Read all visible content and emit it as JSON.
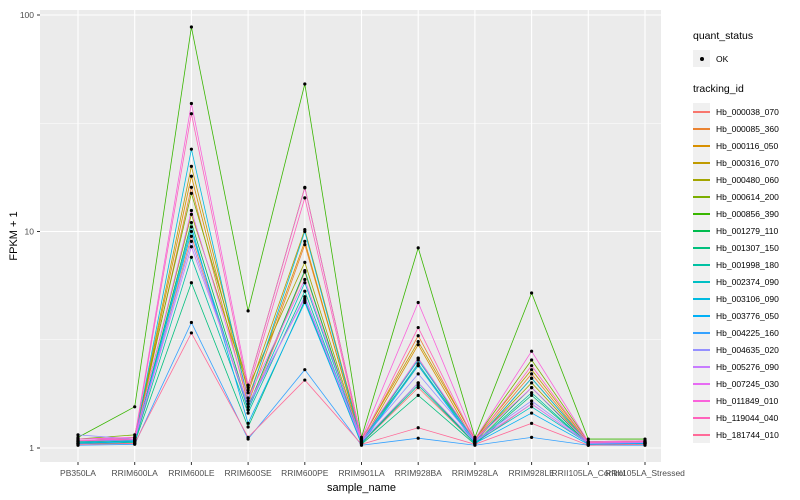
{
  "legend": {
    "quant_status_title": "quant_status",
    "quant_status_items": [
      {
        "label": "OK",
        "symbol": "point"
      }
    ],
    "tracking_id_title": "tracking_id"
  },
  "chart_data": {
    "type": "line",
    "title": "",
    "xlabel": "sample_name",
    "ylabel": "FPKM + 1",
    "y_scale": "log10",
    "ylim": [
      0.86,
      115
    ],
    "y_ticks": [
      1,
      10,
      100
    ],
    "y_minor_ticks": [
      3.162,
      31.62
    ],
    "grid": "on",
    "legend_position": "right",
    "panel_bg": "#EBEBEB",
    "grid_color": "#FFFFFF",
    "point_color": "#000000",
    "axis_text_color": "#4D4D4D",
    "categories": [
      "PB350LA",
      "RRIM600LA",
      "RRIM600LE",
      "RRIM600SE",
      "RRIM600PE",
      "RRIM901LA",
      "RRIM928BA",
      "RRIM928LA",
      "RRIM928LE",
      "RRII105LA_Control",
      "RRII105LA_Stressed"
    ],
    "series": [
      {
        "name": "Hb_000038_070",
        "color": "#F8766D",
        "values": [
          1.05,
          1.05,
          9.5,
          1.5,
          6.5,
          1.05,
          1.9,
          1.05,
          1.6,
          1.05,
          1.05
        ]
      },
      {
        "name": "Hb_000085_360",
        "color": "#EA8331",
        "values": [
          1.08,
          1.08,
          16,
          1.6,
          8.7,
          1.08,
          3.3,
          1.08,
          2.2,
          1.05,
          1.05
        ]
      },
      {
        "name": "Hb_000116_050",
        "color": "#D89000",
        "values": [
          1.06,
          1.1,
          18,
          1.7,
          9.0,
          1.06,
          3.0,
          1.06,
          2.1,
          1.05,
          1.06
        ]
      },
      {
        "name": "Hb_000316_070",
        "color": "#C09B00",
        "values": [
          1.1,
          1.1,
          20,
          1.8,
          10.2,
          1.1,
          3.1,
          1.1,
          2.3,
          1.06,
          1.06
        ]
      },
      {
        "name": "Hb_000480_060",
        "color": "#A3A500",
        "values": [
          1.07,
          1.12,
          12,
          1.9,
          7.2,
          1.07,
          2.6,
          1.07,
          2.0,
          1.05,
          1.07
        ]
      },
      {
        "name": "Hb_000614_200",
        "color": "#7CAE00",
        "values": [
          1.1,
          1.15,
          15,
          1.95,
          16,
          1.1,
          2.4,
          1.1,
          2.55,
          1.07,
          1.08
        ]
      },
      {
        "name": "Hb_000856_390",
        "color": "#39B600",
        "values": [
          1.12,
          1.55,
          88,
          4.3,
          48,
          1.12,
          8.4,
          1.12,
          5.2,
          1.1,
          1.1
        ]
      },
      {
        "name": "Hb_001279_110",
        "color": "#00BB4E",
        "values": [
          1.05,
          1.08,
          11,
          1.55,
          6.6,
          1.05,
          2.0,
          1.05,
          1.9,
          1.04,
          1.05
        ]
      },
      {
        "name": "Hb_001307_150",
        "color": "#00BF7D",
        "values": [
          1.04,
          1.06,
          5.8,
          1.25,
          4.8,
          1.04,
          1.75,
          1.04,
          1.75,
          1.04,
          1.04
        ]
      },
      {
        "name": "Hb_001998_180",
        "color": "#00C1A3",
        "values": [
          1.05,
          1.07,
          7.6,
          1.45,
          5.3,
          1.05,
          1.95,
          1.05,
          1.8,
          1.04,
          1.05
        ]
      },
      {
        "name": "Hb_002374_090",
        "color": "#00BFC4",
        "values": [
          1.06,
          1.08,
          10,
          1.5,
          5.8,
          1.06,
          2.45,
          1.06,
          1.55,
          1.05,
          1.05
        ]
      },
      {
        "name": "Hb_003106_090",
        "color": "#00BAE0",
        "values": [
          1.07,
          1.09,
          24,
          1.65,
          10,
          1.07,
          2.55,
          1.07,
          2.1,
          1.05,
          1.06
        ]
      },
      {
        "name": "Hb_003776_050",
        "color": "#00B0F6",
        "values": [
          1.05,
          1.07,
          10.5,
          1.3,
          4.7,
          1.05,
          2.4,
          1.05,
          1.45,
          1.04,
          1.05
        ]
      },
      {
        "name": "Hb_004225_160",
        "color": "#35A2FF",
        "values": [
          1.03,
          1.04,
          3.8,
          1.1,
          2.3,
          1.03,
          1.11,
          1.03,
          1.12,
          1.03,
          1.03
        ]
      },
      {
        "name": "Hb_004635_020",
        "color": "#9590FF",
        "values": [
          1.15,
          1.1,
          9.0,
          1.55,
          5.0,
          1.08,
          2.2,
          1.08,
          1.65,
          1.06,
          1.06
        ]
      },
      {
        "name": "Hb_005276_090",
        "color": "#C77CFF",
        "values": [
          1.08,
          1.09,
          8.5,
          1.6,
          4.9,
          1.07,
          2.0,
          1.07,
          1.6,
          1.05,
          1.06
        ]
      },
      {
        "name": "Hb_007245_030",
        "color": "#E76BF3",
        "values": [
          1.1,
          1.1,
          12.5,
          1.7,
          6.0,
          1.09,
          2.6,
          1.09,
          1.9,
          1.06,
          1.07
        ]
      },
      {
        "name": "Hb_011849_010",
        "color": "#FA62DB",
        "values": [
          1.1,
          1.12,
          39,
          1.95,
          15.9,
          1.1,
          4.7,
          1.1,
          2.8,
          1.07,
          1.08
        ]
      },
      {
        "name": "Hb_119044_040",
        "color": "#FF62BC",
        "values": [
          1.08,
          1.1,
          35,
          1.85,
          14.3,
          1.08,
          3.6,
          1.08,
          2.4,
          1.06,
          1.07
        ]
      },
      {
        "name": "Hb_181744_010",
        "color": "#FF6A98",
        "values": [
          1.04,
          1.05,
          3.4,
          1.12,
          2.06,
          1.04,
          1.24,
          1.04,
          1.3,
          1.03,
          1.04
        ]
      }
    ]
  }
}
